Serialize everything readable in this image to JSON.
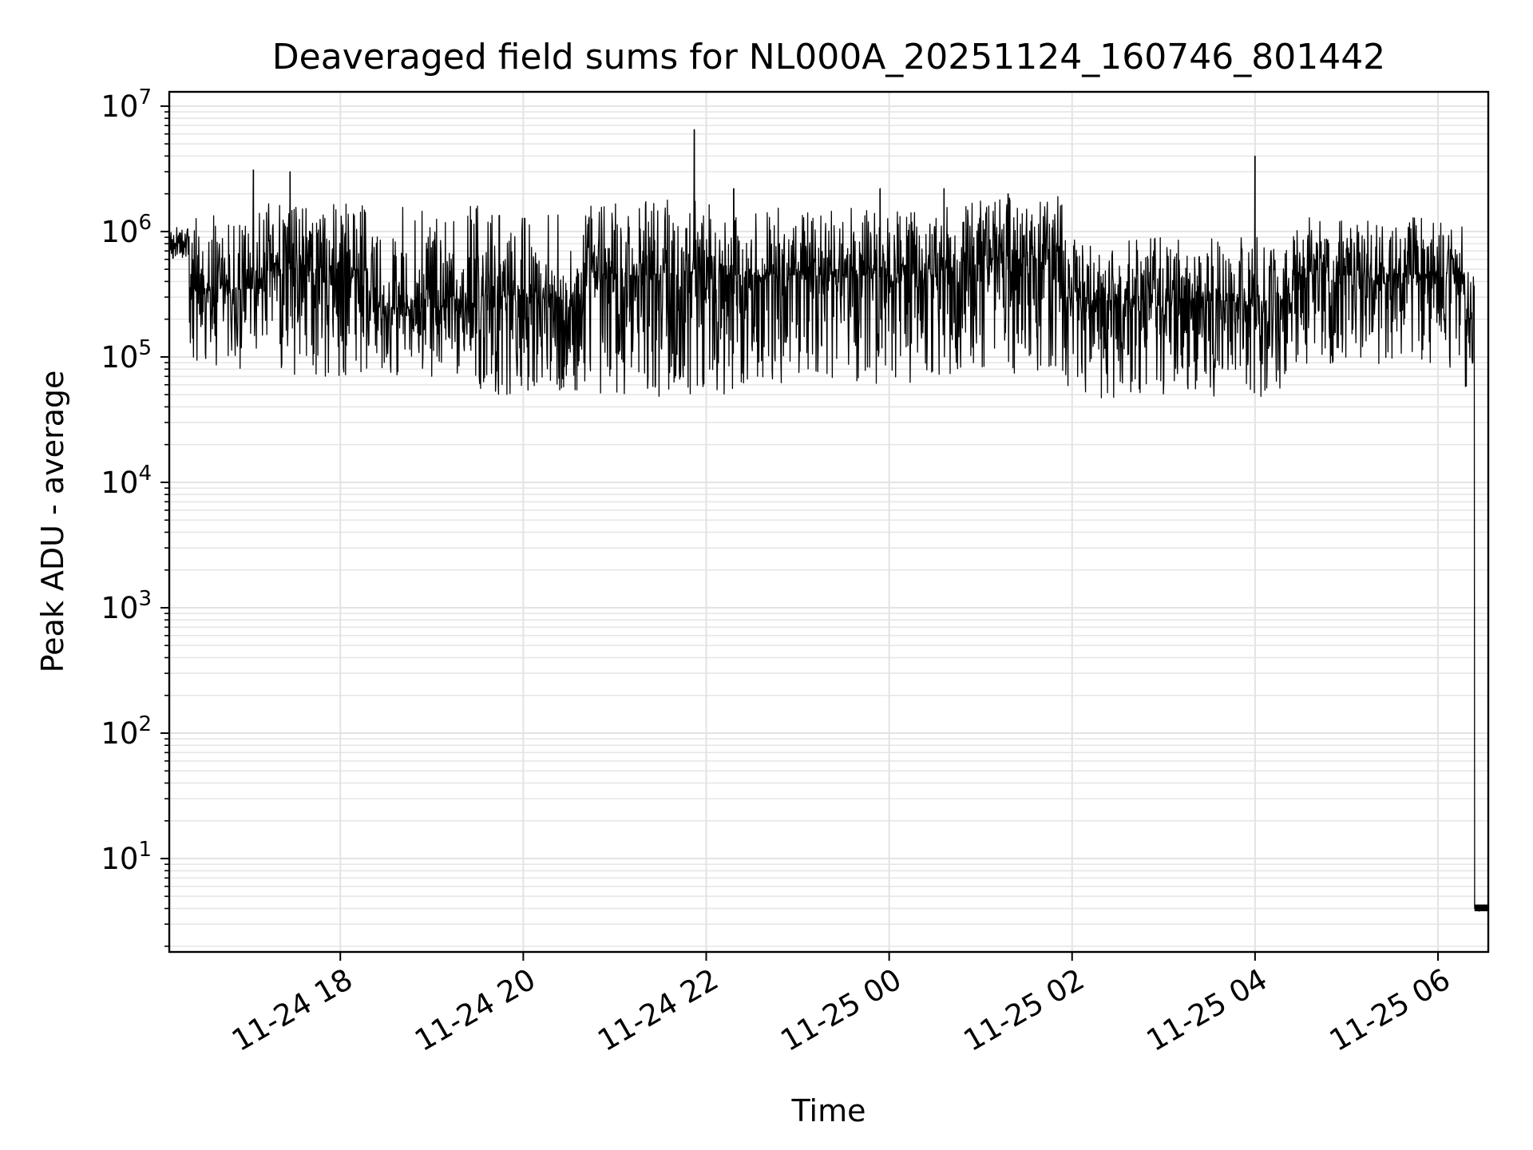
{
  "chart_data": {
    "type": "line",
    "title": "Deaveraged field sums for NL000A_20251124_160746_801442",
    "xlabel": "Time",
    "ylabel": "Peak ADU - average",
    "yscale": "log",
    "ylim": [
      1.8,
      13000000
    ],
    "xlim_hours": [
      16.13,
      6.55
    ],
    "grid": true,
    "x_ticks": [
      {
        "label": "11-24 18",
        "hour": 18
      },
      {
        "label": "11-24 20",
        "hour": 20
      },
      {
        "label": "11-24 22",
        "hour": 22
      },
      {
        "label": "11-25 00",
        "hour": 24
      },
      {
        "label": "11-25 02",
        "hour": 26
      },
      {
        "label": "11-25 04",
        "hour": 28
      },
      {
        "label": "11-25 06",
        "hour": 30
      }
    ],
    "y_ticks": [
      {
        "base": "10",
        "exp": "1",
        "value": 10
      },
      {
        "base": "10",
        "exp": "2",
        "value": 100
      },
      {
        "base": "10",
        "exp": "3",
        "value": 1000
      },
      {
        "base": "10",
        "exp": "4",
        "value": 10000
      },
      {
        "base": "10",
        "exp": "5",
        "value": 100000
      },
      {
        "base": "10",
        "exp": "6",
        "value": 1000000
      },
      {
        "base": "10",
        "exp": "7",
        "value": 10000000
      }
    ],
    "series": [
      {
        "name": "Deaveraged field sum",
        "color": "#000000",
        "segments": [
          {
            "from_hour": 16.13,
            "to_hour": 16.35,
            "median": 800000,
            "low": 600000,
            "high": 1100000
          },
          {
            "from_hour": 16.35,
            "to_hour": 17.2,
            "median": 350000,
            "low": 80000,
            "high": 1600000
          },
          {
            "from_hour": 17.2,
            "to_hour": 18.3,
            "median": 500000,
            "low": 70000,
            "high": 1700000
          },
          {
            "from_hour": 18.3,
            "to_hour": 19.5,
            "median": 250000,
            "low": 70000,
            "high": 1600000
          },
          {
            "from_hour": 19.5,
            "to_hour": 20.7,
            "median": 300000,
            "low": 50000,
            "high": 1400000
          },
          {
            "from_hour": 20.7,
            "to_hour": 22.3,
            "median": 450000,
            "low": 45000,
            "high": 1800000
          },
          {
            "from_hour": 22.3,
            "to_hour": 24.7,
            "median": 450000,
            "low": 60000,
            "high": 1600000
          },
          {
            "from_hour": 24.7,
            "to_hour": 25.9,
            "median": 600000,
            "low": 70000,
            "high": 1900000
          },
          {
            "from_hour": 25.9,
            "to_hour": 28.4,
            "median": 280000,
            "low": 47000,
            "high": 900000
          },
          {
            "from_hour": 28.4,
            "to_hour": 30.3,
            "median": 450000,
            "low": 80000,
            "high": 1300000
          },
          {
            "from_hour": 30.3,
            "to_hour": 30.4,
            "median": 200000,
            "low": 55000,
            "high": 600000
          },
          {
            "from_hour": 30.4,
            "to_hour": 30.55,
            "median": 4,
            "low": 3.8,
            "high": 4.3
          }
        ],
        "spikes": [
          {
            "hour": 17.05,
            "value": 3100000
          },
          {
            "hour": 17.45,
            "value": 3000000
          },
          {
            "hour": 21.87,
            "value": 6500000
          },
          {
            "hour": 22.3,
            "value": 2200000
          },
          {
            "hour": 23.9,
            "value": 2200000
          },
          {
            "hour": 24.6,
            "value": 2200000
          },
          {
            "hour": 25.3,
            "value": 2000000
          },
          {
            "hour": 28.0,
            "value": 4000000
          }
        ]
      }
    ]
  }
}
